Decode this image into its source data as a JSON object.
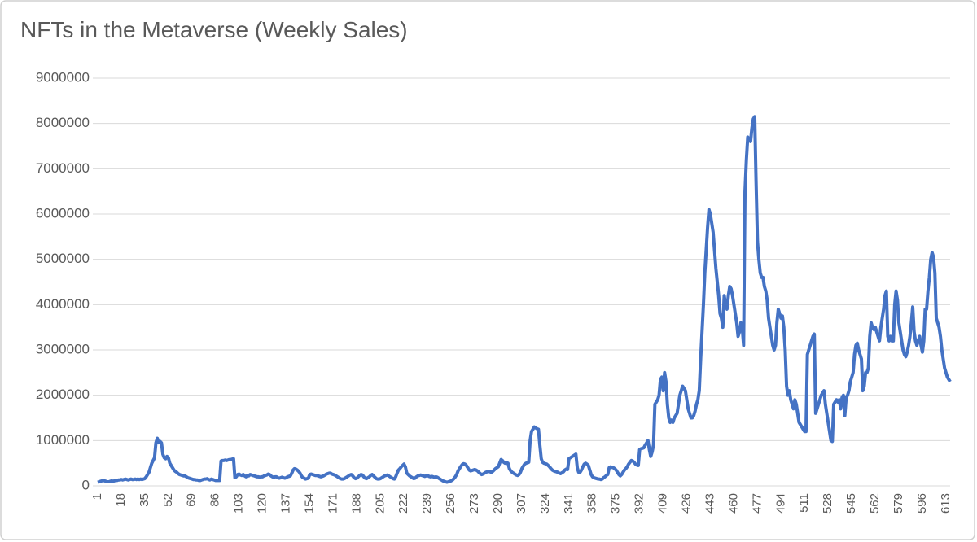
{
  "chart_data": {
    "type": "line",
    "title": "NFTs in the Metaverse (Weekly Sales)",
    "ylim": [
      0,
      9000000
    ],
    "yticks": [
      0,
      1000000,
      2000000,
      3000000,
      4000000,
      5000000,
      6000000,
      7000000,
      8000000,
      9000000
    ],
    "grid": true,
    "categories": [
      1,
      null,
      null,
      null,
      null,
      null,
      null,
      null,
      null,
      null,
      null,
      null,
      null,
      null,
      null,
      null,
      null,
      18,
      null,
      null,
      null,
      null,
      null,
      null,
      null,
      null,
      null,
      null,
      null,
      null,
      null,
      null,
      null,
      null,
      35,
      null,
      null,
      null,
      null,
      null,
      null,
      null,
      null,
      null,
      null,
      null,
      null,
      null,
      null,
      null,
      null,
      52,
      null,
      null,
      null,
      null,
      null,
      null,
      null,
      null,
      null,
      null,
      null,
      null,
      null,
      null,
      null,
      null,
      69,
      null,
      null,
      null,
      null,
      null,
      null,
      null,
      null,
      null,
      null,
      null,
      null,
      null,
      null,
      null,
      null,
      86,
      null,
      null,
      null,
      null,
      null,
      null,
      null,
      null,
      null,
      null,
      null,
      null,
      null,
      null,
      null,
      null,
      103,
      null,
      null,
      null,
      null,
      null,
      null,
      null,
      null,
      null,
      null,
      null,
      null,
      null,
      null,
      null,
      null,
      120,
      null,
      null,
      null,
      null,
      null,
      null,
      null,
      null,
      null,
      null,
      null,
      null,
      null,
      null,
      null,
      null,
      137,
      null,
      null,
      null,
      null,
      null,
      null,
      null,
      null,
      null,
      null,
      null,
      null,
      null,
      null,
      null,
      null,
      154,
      null,
      null,
      null,
      null,
      null,
      null,
      null,
      null,
      null,
      null,
      null,
      null,
      null,
      null,
      null,
      null,
      171,
      null,
      null,
      null,
      null,
      null,
      null,
      null,
      null,
      null,
      null,
      null,
      null,
      null,
      null,
      null,
      null,
      188,
      null,
      null,
      null,
      null,
      null,
      null,
      null,
      null,
      null,
      null,
      null,
      null,
      null,
      null,
      null,
      null,
      205,
      null,
      null,
      null,
      null,
      null,
      null,
      null,
      null,
      null,
      null,
      null,
      null,
      null,
      null,
      null,
      null,
      222,
      null,
      null,
      null,
      null,
      null,
      null,
      null,
      null,
      null,
      null,
      null,
      null,
      null,
      null,
      null,
      null,
      239,
      null,
      null,
      null,
      null,
      null,
      null,
      null,
      null,
      null,
      null,
      null,
      null,
      null,
      null,
      null,
      null,
      256,
      null,
      null,
      null,
      null,
      null,
      null,
      null,
      null,
      null,
      null,
      null,
      null,
      null,
      null,
      null,
      null,
      273,
      null,
      null,
      null,
      null,
      null,
      null,
      null,
      null,
      null,
      null,
      null,
      null,
      null,
      null,
      null,
      null,
      290,
      null,
      null,
      null,
      null,
      null,
      null,
      null,
      null,
      null,
      null,
      null,
      null,
      null,
      null,
      null,
      null,
      307,
      null,
      null,
      null,
      null,
      null,
      null,
      null,
      null,
      null,
      null,
      null,
      null,
      null,
      null,
      null,
      null,
      324,
      null,
      null,
      null,
      null,
      null,
      null,
      null,
      null,
      null,
      null,
      null,
      null,
      null,
      null,
      null,
      null,
      341,
      null,
      null,
      null,
      null,
      null,
      null,
      null,
      null,
      null,
      null,
      null,
      null,
      null,
      null,
      null,
      null,
      358,
      null,
      null,
      null,
      null,
      null,
      null,
      null,
      null,
      null,
      null,
      null,
      null,
      null,
      null,
      null,
      null,
      375,
      null,
      null,
      null,
      null,
      null,
      null,
      null,
      null,
      null,
      null,
      null,
      null,
      null,
      null,
      null,
      null,
      392,
      null,
      null,
      null,
      null,
      null,
      null,
      null,
      null,
      null,
      null,
      null,
      null,
      null,
      null,
      null,
      null,
      409,
      null,
      null,
      null,
      null,
      null,
      null,
      null,
      null,
      null,
      null,
      null,
      null,
      null,
      null,
      null,
      null,
      426,
      null,
      null,
      null,
      null,
      null,
      null,
      null,
      null,
      null,
      null,
      null,
      null,
      null,
      null,
      null,
      null,
      443,
      null,
      null,
      null,
      null,
      null,
      null,
      null,
      null,
      null,
      null,
      null,
      null,
      null,
      null,
      null,
      null,
      460,
      null,
      null,
      null,
      null,
      null,
      null,
      null,
      null,
      null,
      null,
      null,
      null,
      null,
      null,
      null,
      null,
      477,
      null,
      null,
      null,
      null,
      null,
      null,
      null,
      null,
      null,
      null,
      null,
      null,
      null,
      null,
      null,
      null,
      494,
      null,
      null,
      null,
      null,
      null,
      null,
      null,
      null,
      null,
      null,
      null,
      null,
      null,
      null,
      null,
      null,
      511,
      null,
      null,
      null,
      null,
      null,
      null,
      null,
      null,
      null,
      null,
      null,
      null,
      null,
      null,
      null,
      null,
      528,
      null,
      null,
      null,
      null,
      null,
      null,
      null,
      null,
      null,
      null,
      null,
      null,
      null,
      null,
      null,
      null,
      545,
      null,
      null,
      null,
      null,
      null,
      null,
      null,
      null,
      null,
      null,
      null,
      null,
      null,
      null,
      null,
      null,
      562,
      null,
      null,
      null,
      null,
      null,
      null,
      null,
      null,
      null,
      null,
      null,
      null,
      null,
      null,
      null,
      null,
      579,
      null,
      null,
      null,
      null,
      null,
      null,
      null,
      null,
      null,
      null,
      null,
      null,
      null,
      null,
      null,
      null,
      596,
      null,
      null,
      null,
      null,
      null,
      null,
      null,
      null,
      null,
      null,
      null,
      null,
      null,
      null,
      null,
      null,
      613,
      null,
      null,
      null
    ],
    "series": [
      {
        "name": "Weekly Sales",
        "color": "#4472c4",
        "values": [
          80000,
          90000,
          100000,
          110000,
          120000,
          110000,
          100000,
          90000,
          90000,
          100000,
          110000,
          100000,
          110000,
          120000,
          120000,
          130000,
          130000,
          140000,
          130000,
          140000,
          150000,
          140000,
          130000,
          140000,
          150000,
          140000,
          140000,
          150000,
          140000,
          150000,
          140000,
          150000,
          140000,
          150000,
          160000,
          200000,
          250000,
          300000,
          400000,
          500000,
          560000,
          620000,
          950000,
          1050000,
          950000,
          980000,
          950000,
          700000,
          620000,
          600000,
          650000,
          620000,
          500000,
          450000,
          400000,
          350000,
          320000,
          300000,
          270000,
          250000,
          240000,
          230000,
          220000,
          220000,
          200000,
          180000,
          170000,
          160000,
          150000,
          140000,
          140000,
          130000,
          130000,
          120000,
          120000,
          130000,
          140000,
          150000,
          150000,
          160000,
          140000,
          130000,
          150000,
          140000,
          130000,
          120000,
          120000,
          120000,
          120000,
          550000,
          560000,
          560000,
          570000,
          560000,
          570000,
          580000,
          580000,
          590000,
          600000,
          180000,
          200000,
          250000,
          260000,
          240000,
          230000,
          250000,
          220000,
          200000,
          230000,
          220000,
          250000,
          240000,
          230000,
          220000,
          210000,
          200000,
          200000,
          190000,
          200000,
          200000,
          220000,
          230000,
          240000,
          260000,
          250000,
          220000,
          200000,
          190000,
          200000,
          200000,
          180000,
          170000,
          180000,
          190000,
          180000,
          170000,
          180000,
          200000,
          210000,
          220000,
          280000,
          350000,
          380000,
          370000,
          350000,
          320000,
          280000,
          220000,
          180000,
          170000,
          150000,
          160000,
          170000,
          250000,
          260000,
          250000,
          240000,
          230000,
          230000,
          220000,
          210000,
          200000,
          210000,
          220000,
          240000,
          260000,
          270000,
          280000,
          280000,
          260000,
          250000,
          240000,
          220000,
          200000,
          180000,
          160000,
          150000,
          150000,
          160000,
          180000,
          200000,
          220000,
          240000,
          250000,
          220000,
          180000,
          160000,
          170000,
          200000,
          230000,
          250000,
          240000,
          200000,
          170000,
          160000,
          180000,
          200000,
          230000,
          250000,
          220000,
          190000,
          160000,
          150000,
          150000,
          160000,
          180000,
          200000,
          220000,
          230000,
          240000,
          220000,
          200000,
          180000,
          160000,
          150000,
          200000,
          280000,
          350000,
          380000,
          420000,
          450000,
          480000,
          420000,
          280000,
          250000,
          220000,
          200000,
          180000,
          160000,
          170000,
          200000,
          220000,
          230000,
          240000,
          230000,
          220000,
          210000,
          220000,
          230000,
          210000,
          200000,
          210000,
          200000,
          190000,
          200000,
          190000,
          170000,
          150000,
          130000,
          110000,
          100000,
          90000,
          80000,
          90000,
          100000,
          110000,
          130000,
          160000,
          200000,
          250000,
          330000,
          380000,
          430000,
          470000,
          490000,
          480000,
          450000,
          400000,
          350000,
          330000,
          340000,
          350000,
          360000,
          350000,
          330000,
          300000,
          270000,
          250000,
          260000,
          280000,
          300000,
          310000,
          320000,
          310000,
          300000,
          320000,
          350000,
          380000,
          400000,
          420000,
          500000,
          580000,
          560000,
          520000,
          500000,
          510000,
          500000,
          380000,
          330000,
          300000,
          280000,
          260000,
          240000,
          230000,
          250000,
          300000,
          380000,
          430000,
          480000,
          500000,
          510000,
          520000,
          1000000,
          1200000,
          1250000,
          1300000,
          1280000,
          1260000,
          1250000,
          900000,
          600000,
          520000,
          500000,
          490000,
          480000,
          450000,
          420000,
          380000,
          350000,
          330000,
          320000,
          310000,
          300000,
          280000,
          270000,
          290000,
          310000,
          350000,
          370000,
          360000,
          600000,
          620000,
          640000,
          660000,
          680000,
          700000,
          400000,
          300000,
          300000,
          350000,
          420000,
          480000,
          500000,
          480000,
          450000,
          350000,
          250000,
          200000,
          180000,
          170000,
          160000,
          150000,
          150000,
          140000,
          150000,
          180000,
          200000,
          230000,
          250000,
          400000,
          420000,
          410000,
          400000,
          380000,
          350000,
          300000,
          250000,
          220000,
          250000,
          300000,
          350000,
          380000,
          420000,
          480000,
          520000,
          560000,
          550000,
          520000,
          480000,
          460000,
          450000,
          800000,
          820000,
          830000,
          840000,
          900000,
          950000,
          1000000,
          800000,
          650000,
          750000,
          900000,
          1800000,
          1850000,
          1900000,
          2000000,
          2350000,
          2400000,
          2100000,
          2500000,
          2300000,
          1800000,
          1500000,
          1400000,
          1450000,
          1400000,
          1500000,
          1550000,
          1600000,
          1800000,
          2000000,
          2100000,
          2200000,
          2150000,
          2100000,
          1900000,
          1700000,
          1600000,
          1500000,
          1500000,
          1550000,
          1650000,
          1800000,
          1900000,
          2100000,
          2800000,
          3400000,
          4000000,
          4700000,
          5200000,
          5700000,
          6100000,
          6000000,
          5800000,
          5600000,
          5200000,
          4800000,
          4500000,
          4200000,
          3800000,
          3700000,
          3500000,
          4200000,
          4000000,
          3900000,
          4200000,
          4400000,
          4350000,
          4200000,
          4000000,
          3800000,
          3600000,
          3300000,
          3400000,
          3600000,
          3500000,
          3100000,
          6500000,
          7200000,
          7700000,
          7650000,
          7600000,
          7900000,
          8100000,
          8150000,
          6700000,
          5400000,
          5000000,
          4700000,
          4600000,
          4600000,
          4400000,
          4300000,
          4100000,
          3700000,
          3500000,
          3300000,
          3100000,
          3000000,
          3100000,
          3600000,
          3900000,
          3800000,
          3700000,
          3750000,
          3500000,
          3000000,
          2200000,
          2000000,
          2100000,
          1900000,
          1800000,
          1700000,
          1900000,
          1800000,
          1600000,
          1400000,
          1350000,
          1300000,
          1250000,
          1200000,
          1200000,
          2900000,
          3000000,
          3100000,
          3200000,
          3300000,
          3350000,
          1600000,
          1700000,
          1800000,
          1900000,
          2000000,
          2050000,
          2100000,
          1800000,
          1600000,
          1400000,
          1200000,
          1000000,
          980000,
          1800000,
          1850000,
          1900000,
          1850000,
          1900000,
          1700000,
          1950000,
          2000000,
          1550000,
          1950000,
          2000000,
          2100000,
          2300000,
          2400000,
          2500000,
          2900000,
          3100000,
          3150000,
          3000000,
          2900000,
          2800000,
          2100000,
          2200000,
          2500000,
          2500000,
          2600000,
          3300000,
          3600000,
          3500000,
          3450000,
          3500000,
          3400000,
          3300000,
          3200000,
          3500000,
          3700000,
          3900000,
          4200000,
          4300000,
          3300000,
          3200000,
          3300000,
          3200000,
          3200000,
          4000000,
          4300000,
          4100000,
          3600000,
          3400000,
          3200000,
          3000000,
          2900000,
          2850000,
          2950000,
          3100000,
          3300000,
          3600000,
          3950000,
          3400000,
          3200000,
          3100000,
          3200000,
          3300000,
          3100000,
          2950000,
          3200000,
          3900000,
          3900000,
          4300000,
          4600000,
          5000000,
          5150000,
          5050000,
          4700000,
          3700000,
          3600000,
          3500000,
          3300000,
          3000000,
          2800000,
          2600000,
          2500000,
          2400000,
          2350000,
          2300000
        ]
      }
    ]
  }
}
